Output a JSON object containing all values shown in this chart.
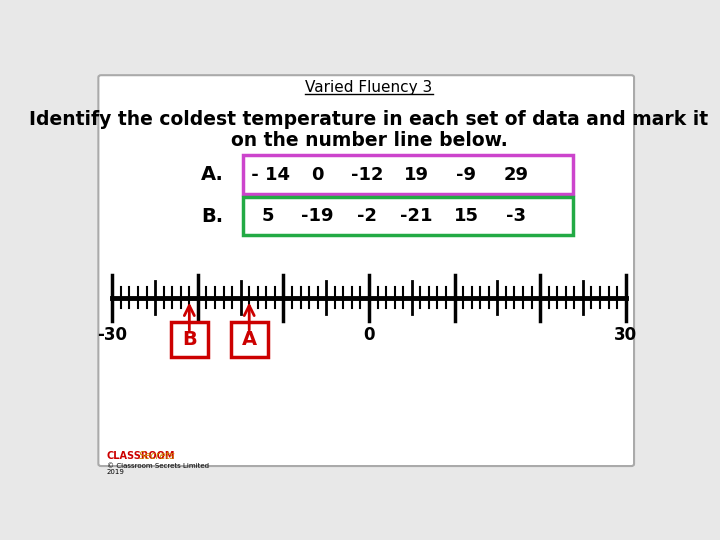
{
  "title": "Varied Fluency 3",
  "instruction_line1": "Identify the coldest temperature in each set of data and mark it",
  "instruction_line2": "on the number line below.",
  "set_a_label": "A.",
  "set_a_values": [
    " - 14",
    "0",
    "-12",
    "19",
    "-9",
    "29"
  ],
  "set_a_border_color": "#cc44cc",
  "set_b_label": "B.",
  "set_b_values": [
    "5",
    "-19",
    "-2",
    "-21",
    "15",
    "-3"
  ],
  "set_b_border_color": "#22aa44",
  "number_line_min": -30,
  "number_line_max": 30,
  "number_line_labels": [
    -30,
    0,
    30
  ],
  "marker_A_value": -14,
  "marker_B_value": -21,
  "marker_color": "#cc0000",
  "background_color": "#e8e8e8",
  "box_background": "#ffffff"
}
